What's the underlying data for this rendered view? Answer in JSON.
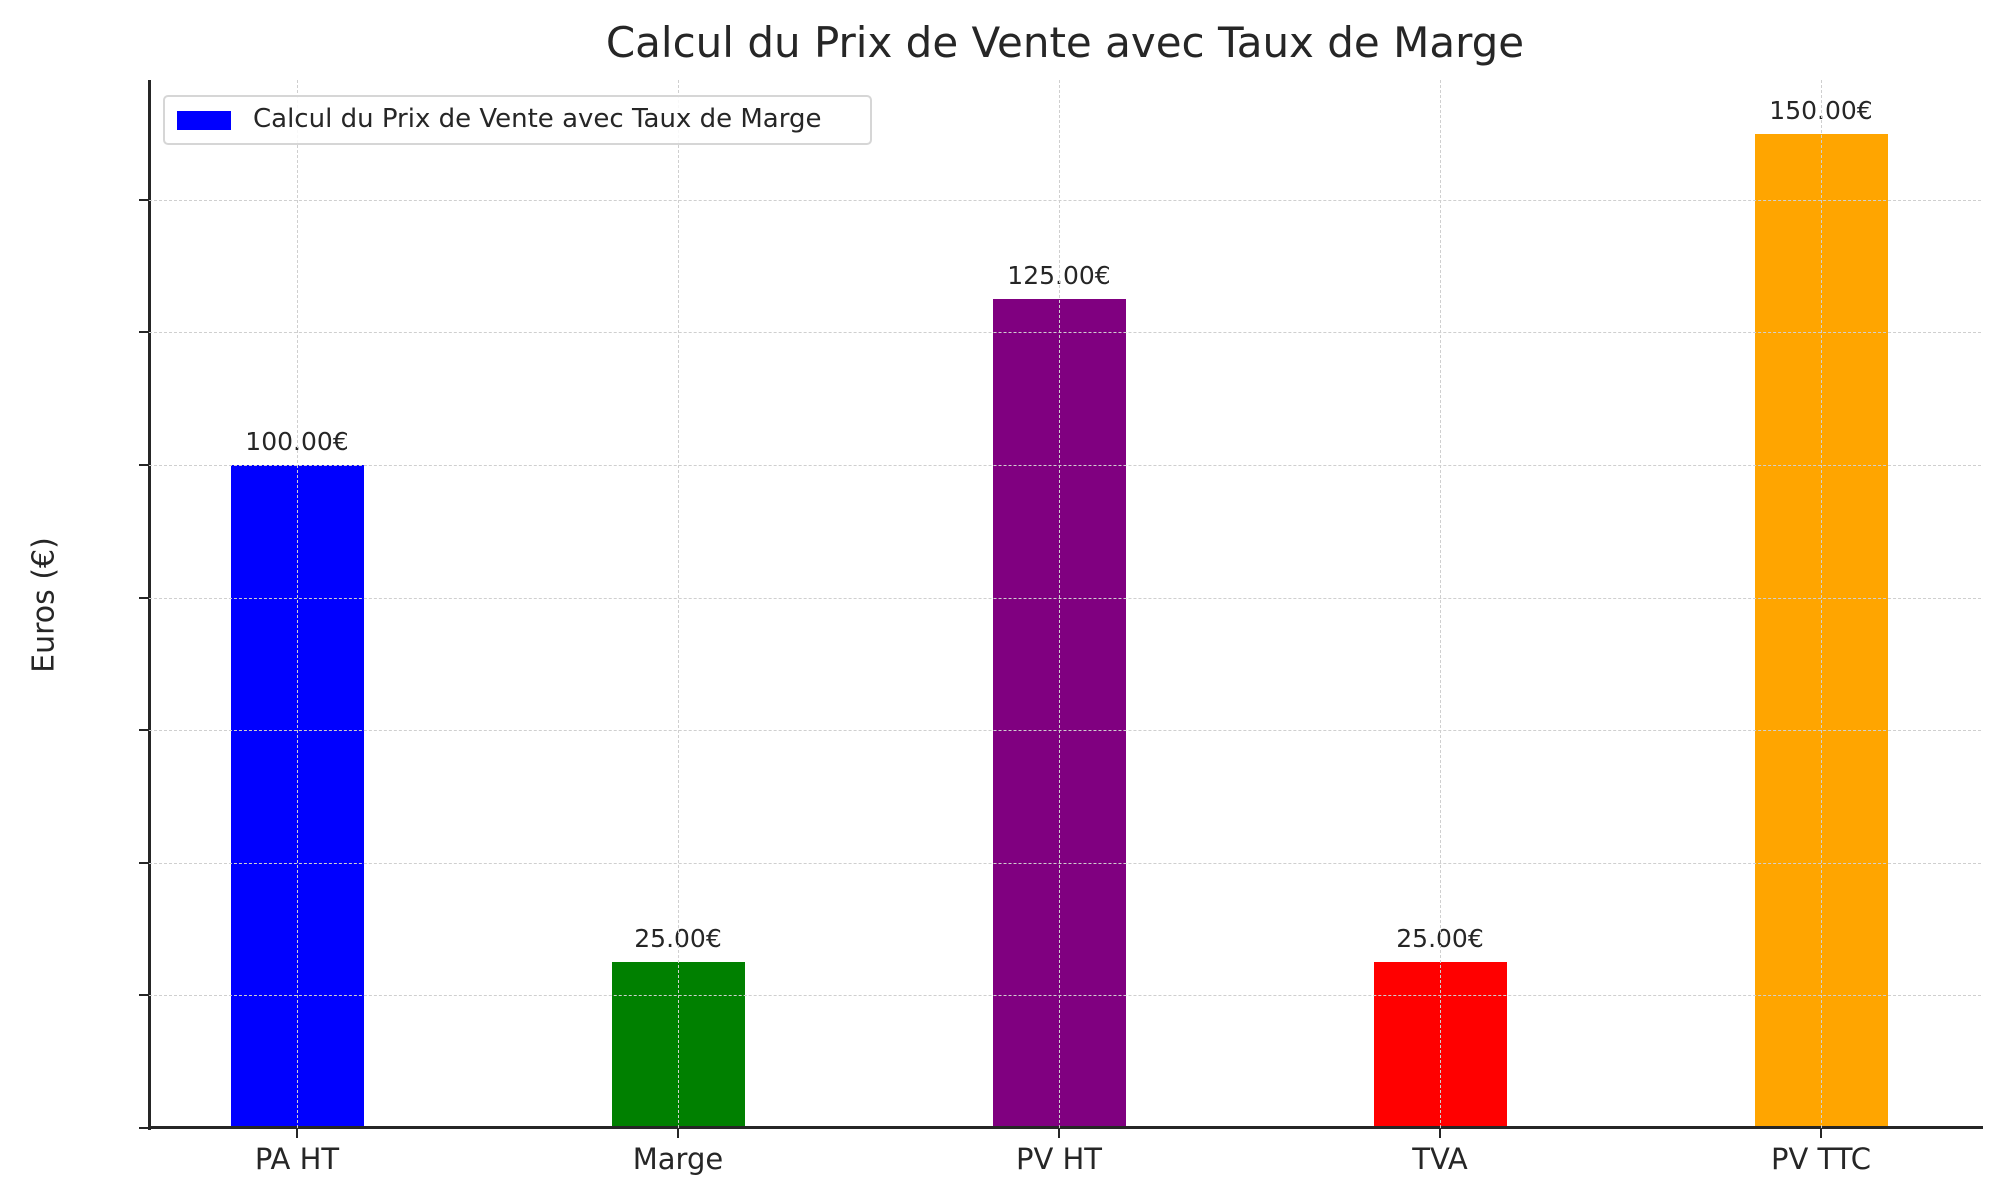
{
  "chart_data": {
    "type": "bar",
    "title": "Calcul du Prix de Vente avec Taux de Marge",
    "xlabel": "",
    "ylabel": "Euros (€)",
    "categories": [
      "PA HT",
      "Marge",
      "PV HT",
      "TVA",
      "PV TTC"
    ],
    "values": [
      100,
      25,
      125,
      25,
      150
    ],
    "value_labels": [
      "100.00€",
      "25.00€",
      "125.00€",
      "25.00€",
      "150.00€"
    ],
    "colors": [
      "#0000ff",
      "#008000",
      "#800080",
      "#ff0000",
      "#ffa500"
    ],
    "ylim": [
      0,
      158
    ],
    "yticks": [
      0,
      20,
      40,
      60,
      80,
      100,
      120,
      140
    ],
    "grid": true,
    "legend": {
      "position": "upper left",
      "entries": [
        {
          "label": "Calcul du Prix de Vente avec Taux de Marge",
          "color": "#0000ff"
        }
      ]
    }
  },
  "title": "Calcul du Prix de Vente avec Taux de Marge",
  "ylabel": "Euros (€)",
  "legend_label": "Calcul du Prix de Vente avec Taux de Marge"
}
